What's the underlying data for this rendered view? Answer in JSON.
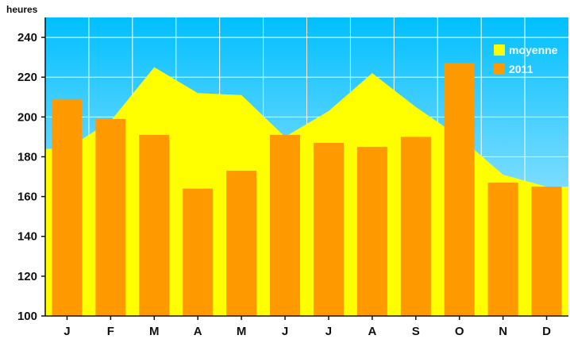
{
  "chart_data": {
    "type": "bar",
    "ylabel": "heures",
    "ylim": [
      100,
      250
    ],
    "yticks": [
      100,
      120,
      140,
      160,
      180,
      200,
      220,
      240
    ],
    "categories": [
      "J",
      "F",
      "M",
      "A",
      "M",
      "J",
      "J",
      "A",
      "S",
      "O",
      "N",
      "D"
    ],
    "series": [
      {
        "name": "moyenne",
        "type": "area",
        "color": "#ffff00",
        "values": [
          184,
          198,
          225,
          212,
          211,
          190,
          203,
          222,
          205,
          190,
          171,
          165
        ]
      },
      {
        "name": "2011",
        "type": "bar",
        "color": "#ff9900",
        "values": [
          209,
          199,
          191,
          164,
          173,
          191,
          187,
          185,
          190,
          227,
          167,
          165
        ]
      }
    ],
    "grid": true,
    "legend": "top-right",
    "background_gradient": [
      "#00bfff",
      "#d9f2ff"
    ]
  }
}
